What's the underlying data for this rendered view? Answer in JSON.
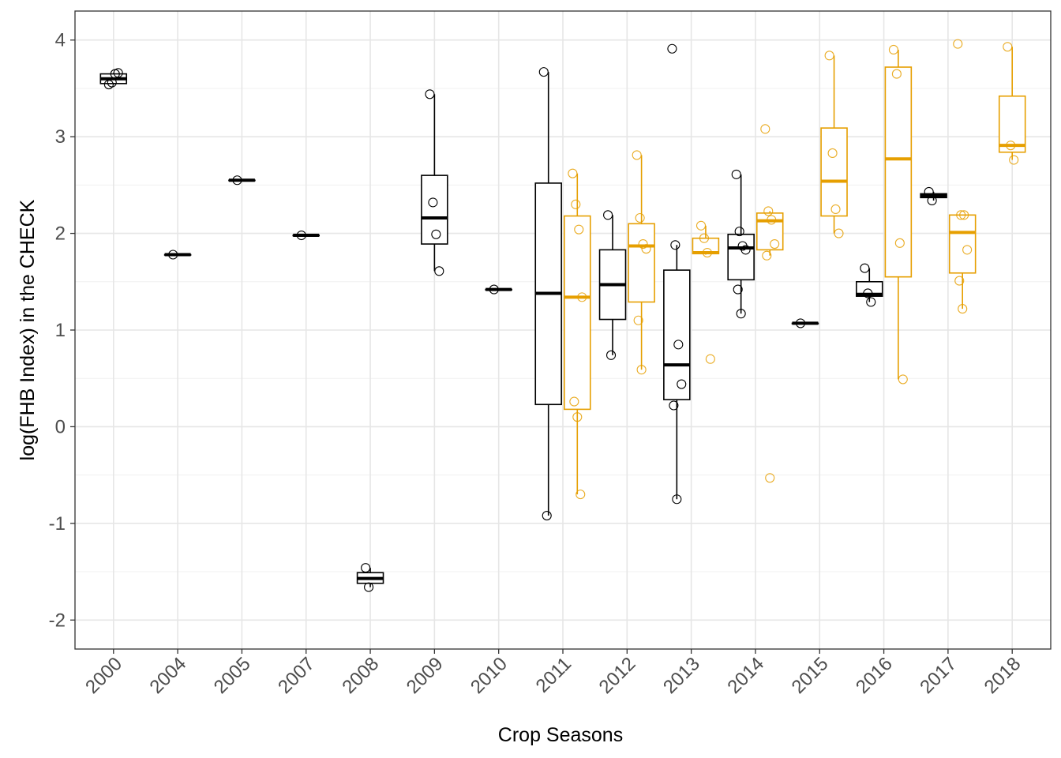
{
  "chart_data": {
    "type": "box",
    "xlabel": "Crop Seasons",
    "ylabel": "log(FHB Index) in the CHECK",
    "ylim": [
      -2.3,
      4.3
    ],
    "yticks": [
      -2,
      -1,
      0,
      1,
      2,
      3,
      4
    ],
    "categories": [
      "2000",
      "2004",
      "2005",
      "2007",
      "2008",
      "2009",
      "2010",
      "2011",
      "2012",
      "2013",
      "2014",
      "2015",
      "2016",
      "2017",
      "2018"
    ],
    "grid": "on",
    "legend": "none",
    "colors": {
      "black": "#000000",
      "orange": "#E69F00"
    },
    "series": [
      {
        "color": "black",
        "boxes": [
          {
            "category": "2000",
            "min": 3.54,
            "q1": 3.55,
            "median": 3.6,
            "q3": 3.65,
            "max": 3.66,
            "points": [
              3.54,
              3.56,
              3.65,
              3.66
            ]
          },
          {
            "category": "2004",
            "min": 1.78,
            "q1": 1.78,
            "median": 1.78,
            "q3": 1.78,
            "max": 1.78,
            "points": [
              1.78
            ]
          },
          {
            "category": "2005",
            "min": 2.55,
            "q1": 2.55,
            "median": 2.55,
            "q3": 2.55,
            "max": 2.55,
            "points": [
              2.55
            ]
          },
          {
            "category": "2007",
            "min": 1.98,
            "q1": 1.98,
            "median": 1.98,
            "q3": 1.98,
            "max": 1.98,
            "points": [
              1.98
            ]
          },
          {
            "category": "2008",
            "min": -1.66,
            "q1": -1.62,
            "median": -1.57,
            "q3": -1.51,
            "max": -1.46,
            "points": [
              -1.46,
              -1.66
            ]
          },
          {
            "category": "2009",
            "min": 1.61,
            "q1": 1.89,
            "median": 2.16,
            "q3": 2.6,
            "max": 3.44,
            "points": [
              3.44,
              2.32,
              1.99,
              1.61
            ]
          },
          {
            "category": "2010",
            "min": 1.42,
            "q1": 1.42,
            "median": 1.42,
            "q3": 1.42,
            "max": 1.42,
            "points": [
              1.42
            ]
          },
          {
            "category": "2011",
            "min": -0.92,
            "q1": 0.23,
            "median": 1.38,
            "q3": 2.52,
            "max": 3.67,
            "points": [
              3.67,
              -0.92
            ]
          },
          {
            "category": "2012",
            "min": 0.74,
            "q1": 1.11,
            "median": 1.47,
            "q3": 1.83,
            "max": 2.19,
            "points": [
              2.19,
              0.74
            ]
          },
          {
            "category": "2013",
            "min": -0.75,
            "q1": 0.28,
            "median": 0.64,
            "q3": 1.62,
            "max": 1.88,
            "points": [
              3.91,
              1.88,
              0.85,
              0.44,
              0.22,
              -0.75
            ]
          },
          {
            "category": "2014",
            "min": 1.17,
            "q1": 1.52,
            "median": 1.85,
            "q3": 1.99,
            "max": 2.61,
            "points": [
              2.61,
              2.02,
              1.87,
              1.83,
              1.42,
              1.17
            ]
          },
          {
            "category": "2015",
            "min": 1.07,
            "q1": 1.07,
            "median": 1.07,
            "q3": 1.07,
            "max": 1.07,
            "points": [
              1.07
            ]
          },
          {
            "category": "2016",
            "min": 1.29,
            "q1": 1.35,
            "median": 1.37,
            "q3": 1.5,
            "max": 1.64,
            "points": [
              1.64,
              1.38,
              1.29
            ]
          },
          {
            "category": "2017",
            "min": 2.34,
            "q1": 2.37,
            "median": 2.39,
            "q3": 2.41,
            "max": 2.43,
            "points": [
              2.43,
              2.34
            ]
          }
        ]
      },
      {
        "color": "orange",
        "boxes": [
          {
            "category": "2011",
            "min": -0.7,
            "q1": 0.18,
            "median": 1.34,
            "q3": 2.18,
            "max": 2.62,
            "points": [
              2.62,
              2.3,
              2.04,
              1.34,
              0.26,
              0.1,
              -0.7
            ]
          },
          {
            "category": "2012",
            "min": 0.59,
            "q1": 1.29,
            "median": 1.87,
            "q3": 2.1,
            "max": 2.81,
            "points": [
              2.81,
              2.16,
              1.89,
              1.84,
              1.1,
              0.59
            ]
          },
          {
            "category": "2013",
            "min": 1.78,
            "q1": 1.79,
            "median": 1.8,
            "q3": 1.95,
            "max": 2.08,
            "points": [
              2.08,
              1.95,
              1.8,
              0.7
            ]
          },
          {
            "category": "2014",
            "min": 1.77,
            "q1": 1.83,
            "median": 2.13,
            "q3": 2.21,
            "max": 2.23,
            "points": [
              3.08,
              2.23,
              2.14,
              1.89,
              1.77,
              -0.53
            ]
          },
          {
            "category": "2015",
            "min": 2.0,
            "q1": 2.18,
            "median": 2.54,
            "q3": 3.09,
            "max": 3.84,
            "points": [
              3.84,
              2.83,
              2.25,
              2.0
            ]
          },
          {
            "category": "2016",
            "min": 0.49,
            "q1": 1.55,
            "median": 2.77,
            "q3": 3.72,
            "max": 3.9,
            "points": [
              3.9,
              3.65,
              1.9,
              0.49
            ]
          },
          {
            "category": "2017",
            "min": 1.22,
            "q1": 1.59,
            "median": 2.01,
            "q3": 2.19,
            "max": 2.19,
            "points": [
              3.96,
              2.19,
              2.19,
              1.83,
              1.51,
              1.22
            ]
          },
          {
            "category": "2018",
            "min": 2.76,
            "q1": 2.84,
            "median": 2.91,
            "q3": 3.42,
            "max": 3.93,
            "points": [
              3.93,
              2.91,
              2.76
            ]
          }
        ]
      }
    ]
  }
}
